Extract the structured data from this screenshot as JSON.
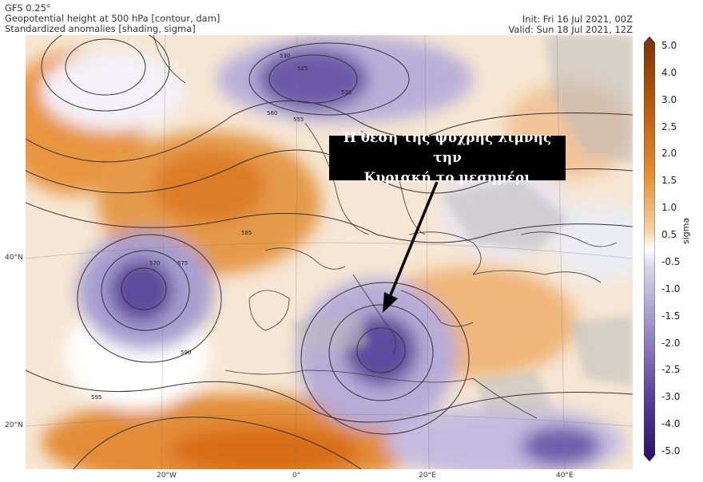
{
  "header": {
    "model": "GFS 0.25°",
    "contour_desc": "Geopotential height at 500 hPa [contour, dam]",
    "shading_desc": "Standardized anomalies [shading, sigma]",
    "init": "Init: Fri 16 Jul 2021, 00Z",
    "valid": "Valid: Sun 18 Jul 2021, 12Z"
  },
  "callout": {
    "line1": "Η θέση της ψυχρής λίμνης την",
    "line2": "Κυριακή το μεσημέρι"
  },
  "axes": {
    "lat_labels": [
      "40°N",
      "20°N"
    ],
    "lon_labels": [
      "20°W",
      "0°",
      "20°E",
      "40°E"
    ]
  },
  "contour_labels": [
    "525",
    "530",
    "535",
    "555",
    "560",
    "570",
    "575",
    "585",
    "590",
    "595"
  ],
  "colorbar": {
    "label": "sigma",
    "ticks": [
      "5.0",
      "4.0",
      "3.0",
      "2.5",
      "2.0",
      "1.5",
      "1.0",
      "0.5",
      "-0.5",
      "-1.0",
      "-1.5",
      "-2.0",
      "-2.5",
      "-3.0",
      "-4.0",
      "-5.0"
    ],
    "positive_color": "#d96b14",
    "negative_color": "#5a3f99"
  }
}
